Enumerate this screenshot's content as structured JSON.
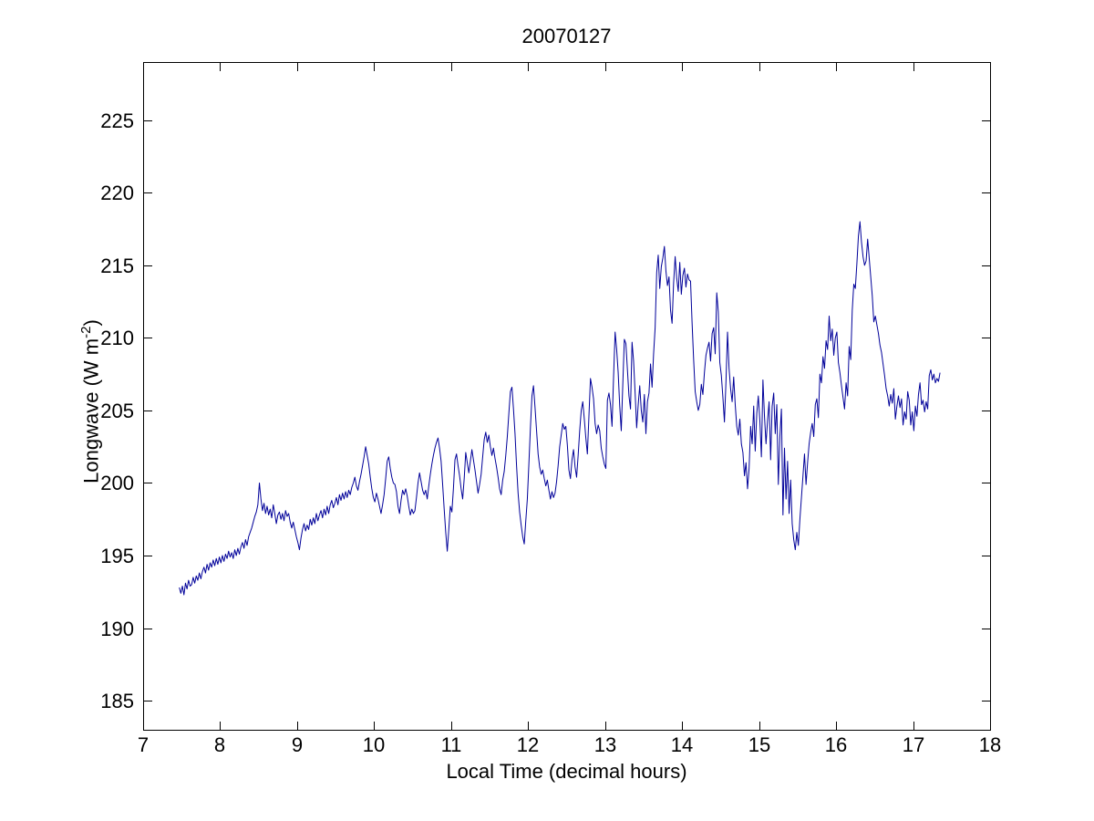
{
  "chart_data": {
    "type": "line",
    "title": "20070127",
    "xlabel": "Local Time (decimal hours)",
    "ylabel": {
      "pre": "Longwave (W m",
      "sup": "-2",
      "post": ")"
    },
    "xlim": [
      7,
      18
    ],
    "ylim": [
      183,
      229
    ],
    "xticks": [
      7,
      8,
      9,
      10,
      11,
      12,
      13,
      14,
      15,
      16,
      17,
      18
    ],
    "yticks": [
      185,
      190,
      195,
      200,
      205,
      210,
      215,
      220,
      225
    ],
    "grid": false,
    "legend": null,
    "line_color": "#000099",
    "axis_color": "#000000",
    "background_color": "#ffffff",
    "series": [
      {
        "name": "longwave",
        "t_start": 7.47,
        "t_step": 0.02,
        "values": [
          192.8,
          192.4,
          192.9,
          192.3,
          193.1,
          192.7,
          193.3,
          192.9,
          193.0,
          193.5,
          193.1,
          193.6,
          193.3,
          193.8,
          193.4,
          193.9,
          194.2,
          193.8,
          194.4,
          194.0,
          194.5,
          194.2,
          194.7,
          194.3,
          194.8,
          194.4,
          194.9,
          194.5,
          195.0,
          194.6,
          195.1,
          194.8,
          195.3,
          194.9,
          195.2,
          194.8,
          195.4,
          195.0,
          195.5,
          195.1,
          195.6,
          195.9,
          195.5,
          196.1,
          195.7,
          196.3,
          196.6,
          196.9,
          197.3,
          197.7,
          198.0,
          198.5,
          200.0,
          198.9,
          198.1,
          198.6,
          197.9,
          198.4,
          197.8,
          198.2,
          197.6,
          198.5,
          197.9,
          197.2,
          197.8,
          198.0,
          197.5,
          197.9,
          197.4,
          198.1,
          197.7,
          197.9,
          197.3,
          196.9,
          197.3,
          196.8,
          196.3,
          195.9,
          195.4,
          196.2,
          196.8,
          197.2,
          196.7,
          197.1,
          196.8,
          197.5,
          197.1,
          197.6,
          197.2,
          197.9,
          197.4,
          197.8,
          198.1,
          197.6,
          198.2,
          197.8,
          198.4,
          197.9,
          198.5,
          198.8,
          198.3,
          198.6,
          199.0,
          198.5,
          199.2,
          198.8,
          199.3,
          198.9,
          199.4,
          199.0,
          199.5,
          199.2,
          199.7,
          200.0,
          200.4,
          199.8,
          199.5,
          200.1,
          200.6,
          201.2,
          201.8,
          202.5,
          201.9,
          201.3,
          200.4,
          199.6,
          199.0,
          198.7,
          199.3,
          198.9,
          198.4,
          197.9,
          198.5,
          199.2,
          200.3,
          201.5,
          201.8,
          201.0,
          200.4,
          200.0,
          199.9,
          199.4,
          198.4,
          197.9,
          198.8,
          199.5,
          199.2,
          199.6,
          199.1,
          198.4,
          197.8,
          198.2,
          197.9,
          198.1,
          199.0,
          200.0,
          200.7,
          200.1,
          199.5,
          199.2,
          199.5,
          198.9,
          199.8,
          200.6,
          201.3,
          201.9,
          202.4,
          202.8,
          203.1,
          202.4,
          201.5,
          199.9,
          198.2,
          196.6,
          195.3,
          196.8,
          198.4,
          198.0,
          199.6,
          201.6,
          202.0,
          201.2,
          200.5,
          199.6,
          198.9,
          200.3,
          202.1,
          201.4,
          200.7,
          201.5,
          202.3,
          201.6,
          200.9,
          200.1,
          199.3,
          199.9,
          200.6,
          201.8,
          203.0,
          203.5,
          202.8,
          203.3,
          202.5,
          201.9,
          202.4,
          201.7,
          201.1,
          200.4,
          199.6,
          199.2,
          200.2,
          200.8,
          201.9,
          203.2,
          204.8,
          206.3,
          206.6,
          205.1,
          203.4,
          201.2,
          199.3,
          198.0,
          197.1,
          196.3,
          195.8,
          197.4,
          198.9,
          201.3,
          203.8,
          206.0,
          206.7,
          205.2,
          203.6,
          202.0,
          201.1,
          200.6,
          200.9,
          200.3,
          199.8,
          200.2,
          199.5,
          198.9,
          199.4,
          199.0,
          199.3,
          200.1,
          201.2,
          202.5,
          203.3,
          204.1,
          203.7,
          203.9,
          202.6,
          200.9,
          200.3,
          201.6,
          202.3,
          201.1,
          200.4,
          201.9,
          203.6,
          205.0,
          205.6,
          204.4,
          203.1,
          202.0,
          204.6,
          207.2,
          206.6,
          205.8,
          204.1,
          203.4,
          204.0,
          203.6,
          202.4,
          201.8,
          201.3,
          201.0,
          205.7,
          206.2,
          205.4,
          203.9,
          207.3,
          210.4,
          209.2,
          207.6,
          205.3,
          203.6,
          206.8,
          209.9,
          209.6,
          207.8,
          206.0,
          205.1,
          209.7,
          208.4,
          206.2,
          203.8,
          205.4,
          206.7,
          205.0,
          204.2,
          206.1,
          203.4,
          205.6,
          206.2,
          208.2,
          206.6,
          208.9,
          210.7,
          214.5,
          215.7,
          213.4,
          214.9,
          215.5,
          216.3,
          214.6,
          213.6,
          214.2,
          211.9,
          211.0,
          213.8,
          215.6,
          214.1,
          213.2,
          215.2,
          213.0,
          214.3,
          214.8,
          213.5,
          214.4,
          214.0,
          213.9,
          211.0,
          208.5,
          206.3,
          205.6,
          205.0,
          205.4,
          206.8,
          206.1,
          207.6,
          208.8,
          209.3,
          209.7,
          208.4,
          210.3,
          210.7,
          208.9,
          213.1,
          211.8,
          208.3,
          207.4,
          205.9,
          204.2,
          207.0,
          210.4,
          207.9,
          206.5,
          205.6,
          207.3,
          205.4,
          203.9,
          203.3,
          204.4,
          202.7,
          202.1,
          200.5,
          201.4,
          199.6,
          201.0,
          203.9,
          202.7,
          205.3,
          202.2,
          204.8,
          206.0,
          204.3,
          201.8,
          207.1,
          204.6,
          202.7,
          204.3,
          205.6,
          201.6,
          205.3,
          206.2,
          203.4,
          205.4,
          199.9,
          203.2,
          205.1,
          197.8,
          202.4,
          198.9,
          201.5,
          197.9,
          200.2,
          197.2,
          196.1,
          195.4,
          196.6,
          195.7,
          197.5,
          199.0,
          200.5,
          202.0,
          199.9,
          201.4,
          202.7,
          203.5,
          204.1,
          203.2,
          205.4,
          205.8,
          204.5,
          207.5,
          206.9,
          208.7,
          207.9,
          209.8,
          209.2,
          211.5,
          209.8,
          210.6,
          208.8,
          210.0,
          210.4,
          208.3,
          207.6,
          206.7,
          205.9,
          205.1,
          206.9,
          206.0,
          209.4,
          208.5,
          211.9,
          213.7,
          213.4,
          215.1,
          217.0,
          218.0,
          216.6,
          215.6,
          215.0,
          215.3,
          216.8,
          215.5,
          214.2,
          212.9,
          211.1,
          211.5,
          210.9,
          210.3,
          209.5,
          209.0,
          208.2,
          207.4,
          206.5,
          206.0,
          205.3,
          206.1,
          205.5,
          206.5,
          204.4,
          205.3,
          206.0,
          205.2,
          205.8,
          204.0,
          204.9,
          204.4,
          206.3,
          205.7,
          204.0,
          204.9,
          203.6,
          205.3,
          204.6,
          206.1,
          206.9,
          205.4,
          205.7,
          204.9,
          205.6,
          205.1,
          207.4,
          207.8,
          207.1,
          207.5,
          206.9,
          207.2,
          207.0,
          207.6
        ]
      }
    ]
  }
}
